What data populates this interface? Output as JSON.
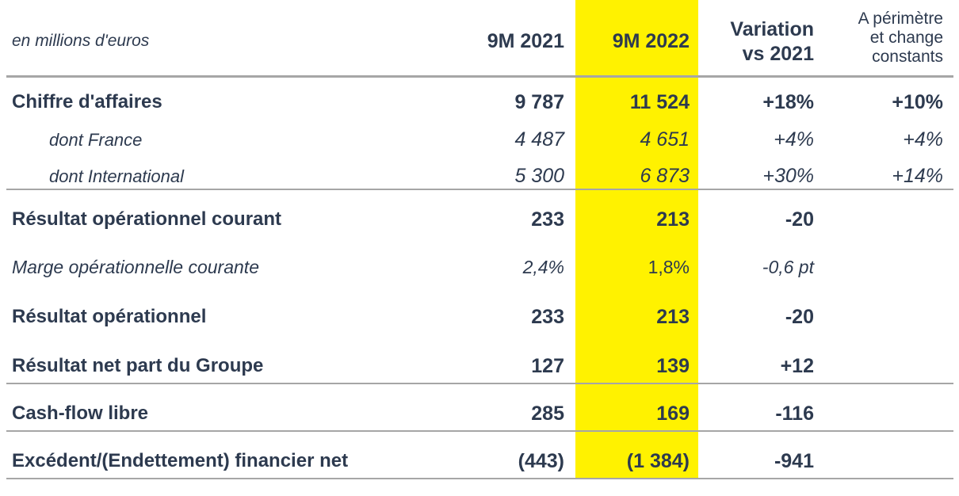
{
  "header": {
    "unit": "en millions d'euros",
    "col1": "9M 2021",
    "col2": "9M 2022",
    "col3_line1": "Variation",
    "col3_line2": "vs 2021",
    "col4_line1": "A périmètre",
    "col4_line2": "et change",
    "col4_line3": "constants"
  },
  "rows": [
    {
      "label": "Chiffre d'affaires",
      "v2021": "9 787",
      "v2022": "11 524",
      "var": "+18%",
      "const": "+10%"
    },
    {
      "label": "dont France",
      "v2021": "4 487",
      "v2022": "4 651",
      "var": "+4%",
      "const": "+4%"
    },
    {
      "label": "dont International",
      "v2021": "5 300",
      "v2022": "6 873",
      "var": "+30%",
      "const": "+14%"
    },
    {
      "label": "Résultat opérationnel courant",
      "v2021": "233",
      "v2022": "213",
      "var": "-20",
      "const": ""
    },
    {
      "label": "Marge opérationnelle courante",
      "v2021": "2,4%",
      "v2022": "1,8%",
      "var": "-0,6 pt",
      "const": ""
    },
    {
      "label": "Résultat opérationnel",
      "v2021": "233",
      "v2022": "213",
      "var": "-20",
      "const": ""
    },
    {
      "label": "Résultat net part du Groupe",
      "v2021": "127",
      "v2022": "139",
      "var": "+12",
      "const": ""
    },
    {
      "label": "Cash-flow libre",
      "v2021": "285",
      "v2022": "169",
      "var": "-116",
      "const": ""
    },
    {
      "label": "Excédent/(Endettement) financier net",
      "v2021": "(443)",
      "v2022": "(1 384)",
      "var": "-941",
      "const": ""
    }
  ],
  "colors": {
    "highlight": "#fff200",
    "text": "#2d3a4f",
    "rule": "#a6a6a6"
  }
}
